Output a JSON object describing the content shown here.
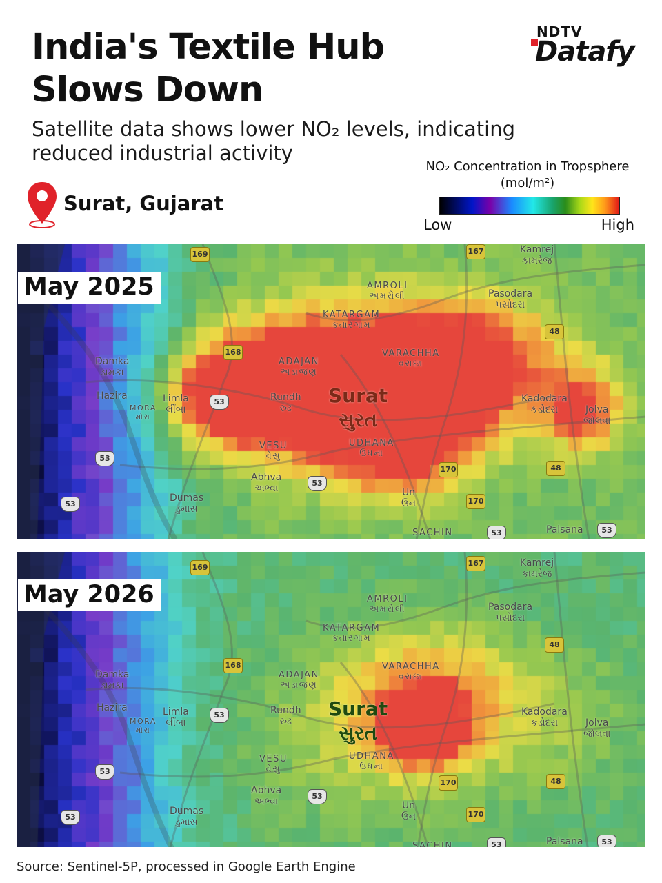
{
  "header": {
    "title": "India's Textile Hub Slows Down",
    "subtitle": "Satellite data shows lower NO₂ levels, indicating reduced industrial activity",
    "logo": {
      "brand": "NDTV",
      "product": "Datafy"
    }
  },
  "location": {
    "label": "Surat, Gujarat",
    "icon": "map-pin-icon",
    "icon_color": "#e0222a"
  },
  "legend": {
    "title": "NO₂ Concentration in Tropsphere (mol/m²)",
    "low_label": "Low",
    "high_label": "High",
    "colors": [
      "#000000",
      "#0016c8",
      "#7a00a8",
      "#1a8aff",
      "#22e8e8",
      "#19a36a",
      "#a8d818",
      "#ffe51a",
      "#ff9a1a",
      "#e21818"
    ]
  },
  "panels": [
    {
      "label": "May 2025",
      "level": "high"
    },
    {
      "label": "May 2026",
      "level": "low"
    }
  ],
  "places": {
    "amroli": "AMROLI",
    "amroli_gu": "અમરોલી",
    "katargam": "KATARGAM",
    "katargam_gu": "કતારગામ",
    "adajan": "ADAJAN",
    "adajan_gu": "અડાજણ",
    "varachha": "VARACHHA",
    "varachha_gu": "વરાછા",
    "surat": "Surat",
    "surat_gu": "સુરત",
    "udhana": "UDHANA",
    "udhana_gu": "ઉધના",
    "vesu": "VESU",
    "vesu_gu": "વેસુ",
    "damka": "Damka",
    "damka_gu": "ડામકા",
    "hazira": "Hazira",
    "mora": "MORA",
    "mora_gu": "મોરા",
    "limla": "Limla",
    "limla_gu": "લીંબા",
    "rundh": "Rundh",
    "rundh_gu": "રુંઢ",
    "abhva": "Abhva",
    "abhva_gu": "અભ્વા",
    "dumas": "Dumas",
    "dumas_gu": "ડુમાસ",
    "un": "Un",
    "un_gu": "ઉન",
    "sachin": "SACHIN",
    "kamrej": "Kamrej",
    "kamrej_gu": "કામરેજ",
    "pasodara": "Pasodara",
    "pasodara_gu": "પસોદરા",
    "kadodara": "Kadodara",
    "kadodara_gu": "કડોદરા",
    "jolva": "Jolva",
    "jolva_gu": "જોલવા",
    "palsana": "Palsana"
  },
  "roads": {
    "r169": "169",
    "r167": "167",
    "r168": "168",
    "r170": "170",
    "r53": "53",
    "r48": "48"
  },
  "source": "Source: Sentinel-5P, processed in Google Earth Engine"
}
